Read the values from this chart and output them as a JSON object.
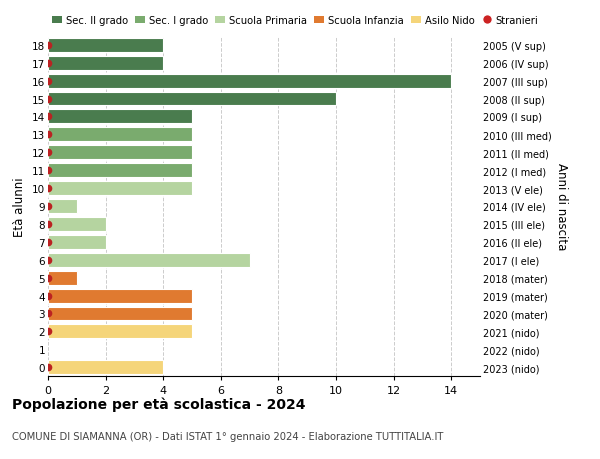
{
  "ages": [
    18,
    17,
    16,
    15,
    14,
    13,
    12,
    11,
    10,
    9,
    8,
    7,
    6,
    5,
    4,
    3,
    2,
    1,
    0
  ],
  "right_labels": [
    "2005 (V sup)",
    "2006 (IV sup)",
    "2007 (III sup)",
    "2008 (II sup)",
    "2009 (I sup)",
    "2010 (III med)",
    "2011 (II med)",
    "2012 (I med)",
    "2013 (V ele)",
    "2014 (IV ele)",
    "2015 (III ele)",
    "2016 (II ele)",
    "2017 (I ele)",
    "2018 (mater)",
    "2019 (mater)",
    "2020 (mater)",
    "2021 (nido)",
    "2022 (nido)",
    "2023 (nido)"
  ],
  "bar_values": [
    4,
    4,
    14,
    10,
    5,
    5,
    5,
    5,
    5,
    1,
    2,
    2,
    7,
    1,
    5,
    5,
    5,
    0,
    4
  ],
  "bar_colors": [
    "#4a7c4e",
    "#4a7c4e",
    "#4a7c4e",
    "#4a7c4e",
    "#4a7c4e",
    "#7aab6e",
    "#7aab6e",
    "#7aab6e",
    "#b5d4a0",
    "#b5d4a0",
    "#b5d4a0",
    "#b5d4a0",
    "#b5d4a0",
    "#e07a30",
    "#e07a30",
    "#e07a30",
    "#f5d57a",
    "#f5d57a",
    "#f5d57a"
  ],
  "stranieri_values": [
    1,
    1,
    1,
    1,
    1,
    1,
    1,
    1,
    1,
    1,
    1,
    1,
    1,
    1,
    1,
    1,
    1,
    0,
    1
  ],
  "legend_labels": [
    "Sec. II grado",
    "Sec. I grado",
    "Scuola Primaria",
    "Scuola Infanzia",
    "Asilo Nido",
    "Stranieri"
  ],
  "legend_colors": [
    "#4a7c4e",
    "#7aab6e",
    "#b5d4a0",
    "#e07a30",
    "#f5d57a",
    "#cc2222"
  ],
  "ylabel": "Età alunni",
  "right_ylabel": "Anni di nascita",
  "title": "Popolazione per età scolastica - 2024",
  "subtitle": "COMUNE DI SIAMANNA (OR) - Dati ISTAT 1° gennaio 2024 - Elaborazione TUTTITALIA.IT",
  "xlim": [
    0,
    15
  ],
  "xticks": [
    0,
    2,
    4,
    6,
    8,
    10,
    12,
    14
  ],
  "bg_color": "#ffffff",
  "grid_color": "#cccccc",
  "bar_height": 0.78,
  "stranieri_dot_color": "#bb2222"
}
